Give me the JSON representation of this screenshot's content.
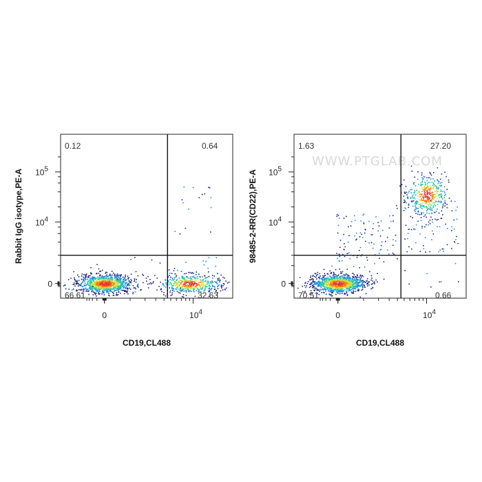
{
  "watermark": "WWW.PTGLAB.COM",
  "colors": {
    "low": "#1a237e",
    "mid1": "#1e88e5",
    "mid2": "#26c6a8",
    "mid3": "#c6e03a",
    "high": "#ff7a00",
    "peak": "#e53935"
  },
  "chart_data": [
    {
      "type": "scatter",
      "title": "",
      "xlabel": "CD19,CL488",
      "ylabel": "Rabbit IgG isotype,PE-A",
      "x_ticks": [
        {
          "base": "0",
          "exp": "",
          "value": 0
        },
        {
          "base": "10",
          "exp": "4",
          "value": 10000
        }
      ],
      "y_ticks": [
        {
          "base": "0",
          "exp": "",
          "value": 0
        },
        {
          "base": "10",
          "exp": "4",
          "value": 10000
        },
        {
          "base": "10",
          "exp": "5",
          "value": 100000
        }
      ],
      "gate": {
        "x": 4500,
        "y": 2000
      },
      "quadrants": {
        "upper_left": "0.12",
        "upper_right": "0.64",
        "lower_left": "66.61",
        "lower_right": "32.63"
      },
      "populations": [
        {
          "x": 0,
          "y": 0,
          "share": 0.666
        },
        {
          "x": 9000,
          "y": 0,
          "share": 0.326
        },
        {
          "x": 9500,
          "y": 15000,
          "share": 0.0064
        }
      ]
    },
    {
      "type": "scatter",
      "title": "",
      "xlabel": "CD19,CL488",
      "ylabel": "98485-2-RR(CD22),PE-A",
      "x_ticks": [
        {
          "base": "0",
          "exp": "",
          "value": 0
        },
        {
          "base": "10",
          "exp": "4",
          "value": 10000
        }
      ],
      "y_ticks": [
        {
          "base": "0",
          "exp": "",
          "value": 0
        },
        {
          "base": "10",
          "exp": "4",
          "value": 10000
        },
        {
          "base": "10",
          "exp": "5",
          "value": 100000
        }
      ],
      "gate": {
        "x": 4500,
        "y": 2000
      },
      "quadrants": {
        "upper_left": "1.63",
        "upper_right": "27.20",
        "lower_left": "70.51",
        "lower_right": "0.66"
      },
      "populations": [
        {
          "x": 0,
          "y": 0,
          "share": 0.705
        },
        {
          "x": 10000,
          "y": 40000,
          "share": 0.272
        },
        {
          "x": 500,
          "y": 5000,
          "share": 0.0163
        }
      ]
    }
  ]
}
